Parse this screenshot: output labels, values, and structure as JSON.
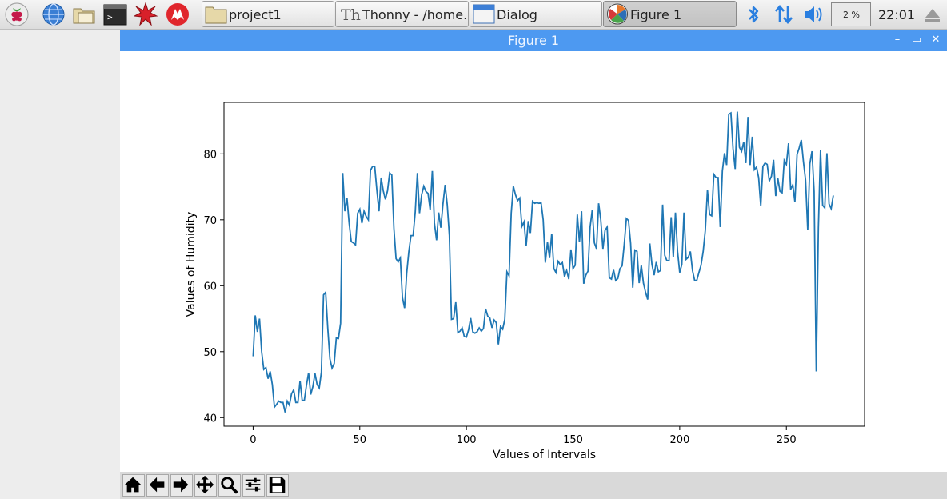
{
  "taskbar": {
    "launchers": [
      "raspberry-menu-icon",
      "web-browser-icon",
      "file-manager-icon",
      "terminal-icon",
      "mathematica-icon",
      "wolfram-icon"
    ],
    "tasks": [
      {
        "label": "project1",
        "icon": "folder-icon",
        "active": false
      },
      {
        "label": "Thonny  -  /home...",
        "icon": "thonny-icon",
        "active": false
      },
      {
        "label": "Dialog",
        "icon": "window-icon",
        "active": false
      },
      {
        "label": "Figure 1",
        "icon": "matplotlib-icon",
        "active": true
      }
    ],
    "cpu_label": "2 %",
    "clock": "22:01",
    "tray": [
      "bluetooth-icon",
      "network-icon",
      "volume-icon",
      "eject-icon"
    ]
  },
  "window": {
    "title": "Figure 1",
    "controls": [
      "minimize-icon",
      "maximize-icon",
      "close-icon"
    ]
  },
  "toolbar": {
    "tools": [
      "home-icon",
      "back-icon",
      "forward-icon",
      "pan-icon",
      "zoom-icon",
      "configure-subplots-icon",
      "save-icon"
    ]
  },
  "chart_data": {
    "type": "line",
    "xlabel": "Values of Intervals",
    "ylabel": "Values of Humidity",
    "xlim": [
      -13.65,
      286.65
    ],
    "ylim": [
      38.7,
      87.8
    ],
    "xticks": [
      0,
      50,
      100,
      150,
      200,
      250
    ],
    "yticks": [
      40,
      50,
      60,
      70,
      80
    ],
    "grid": false,
    "color": "#1f77b4",
    "series": [
      {
        "name": "",
        "values": [
          49.3,
          55.5,
          53.0,
          55.0,
          50.0,
          47.3,
          47.6,
          45.9,
          47.0,
          45.0,
          41.6,
          42.0,
          42.5,
          42.3,
          42.3,
          40.8,
          42.5,
          41.9,
          43.6,
          44.2,
          42.3,
          42.3,
          45.6,
          42.6,
          42.6,
          44.9,
          46.8,
          43.5,
          44.7,
          46.7,
          45.0,
          44.5,
          46.9,
          58.6,
          59.0,
          53.5,
          48.9,
          47.5,
          48.2,
          52.1,
          52.0,
          54.3,
          77.1,
          71.3,
          73.3,
          69.5,
          66.7,
          66.5,
          66.2,
          71.0,
          71.6,
          69.5,
          71.3,
          70.5,
          70.0,
          77.5,
          78.1,
          78.1,
          74.5,
          71.3,
          76.4,
          74.4,
          73.1,
          74.4,
          77.1,
          76.8,
          68.7,
          64.1,
          63.6,
          64.2,
          58.2,
          56.6,
          61.9,
          65.2,
          67.6,
          67.6,
          71.2,
          77.1,
          71.0,
          73.8,
          75.1,
          74.3,
          74.0,
          71.5,
          77.4,
          69.5,
          66.9,
          71.1,
          68.8,
          72.4,
          75.3,
          72.3,
          67.6,
          54.9,
          55.0,
          57.5,
          52.9,
          53.1,
          53.6,
          52.3,
          52.2,
          53.3,
          55.1,
          53.0,
          52.8,
          53.0,
          53.6,
          53.1,
          53.5,
          56.5,
          55.4,
          55.1,
          53.6,
          54.8,
          54.4,
          51.1,
          53.8,
          53.4,
          54.9,
          62.1,
          61.5,
          71.0,
          75.1,
          73.8,
          72.9,
          73.3,
          69.0,
          69.7,
          66.0,
          69.8,
          68.0,
          72.8,
          72.5,
          72.6,
          72.5,
          72.6,
          70.0,
          63.5,
          66.6,
          64.2,
          67.9,
          62.6,
          62.0,
          63.7,
          63.2,
          63.5,
          61.4,
          62.3,
          61.0,
          65.5,
          62.6,
          63.1,
          70.8,
          66.6,
          71.3,
          60.3,
          61.6,
          62.2,
          68.9,
          71.5,
          66.5,
          65.6,
          72.5,
          70.0,
          65.6,
          68.4,
          68.9,
          61.2,
          61.0,
          62.4,
          60.8,
          61.1,
          62.6,
          63.0,
          66.3,
          70.2,
          69.9,
          66.4,
          59.7,
          65.4,
          65.2,
          60.4,
          63.1,
          60.4,
          59.0,
          57.9,
          66.4,
          63.2,
          61.6,
          63.6,
          62.1,
          62.3,
          72.3,
          64.6,
          63.8,
          63.8,
          70.4,
          64.3,
          71.1,
          65.2,
          62.0,
          63.2,
          71.1,
          64.0,
          64.3,
          65.2,
          62.3,
          60.8,
          60.8,
          62.0,
          63.1,
          65.2,
          68.4,
          74.5,
          70.8,
          70.6,
          76.9,
          76.4,
          76.4,
          68.9,
          77.4,
          80.1,
          78.3,
          86.0,
          86.2,
          80.8,
          77.7,
          86.4,
          81.0,
          80.4,
          81.8,
          78.6,
          85.6,
          78.3,
          82.6,
          77.6,
          78.0,
          76.4,
          72.1,
          78.1,
          78.6,
          78.4,
          75.9,
          76.6,
          79.1,
          73.6,
          76.3,
          74.3,
          74.1,
          79.0,
          78.4,
          81.6,
          74.6,
          75.3,
          72.7,
          79.9,
          80.9,
          82.1,
          78.8,
          76.0,
          68.5,
          78.5,
          80.4,
          74.3,
          47.0,
          68.8,
          80.6,
          72.2,
          71.8,
          80.1,
          72.4,
          71.7,
          73.7
        ]
      }
    ]
  }
}
